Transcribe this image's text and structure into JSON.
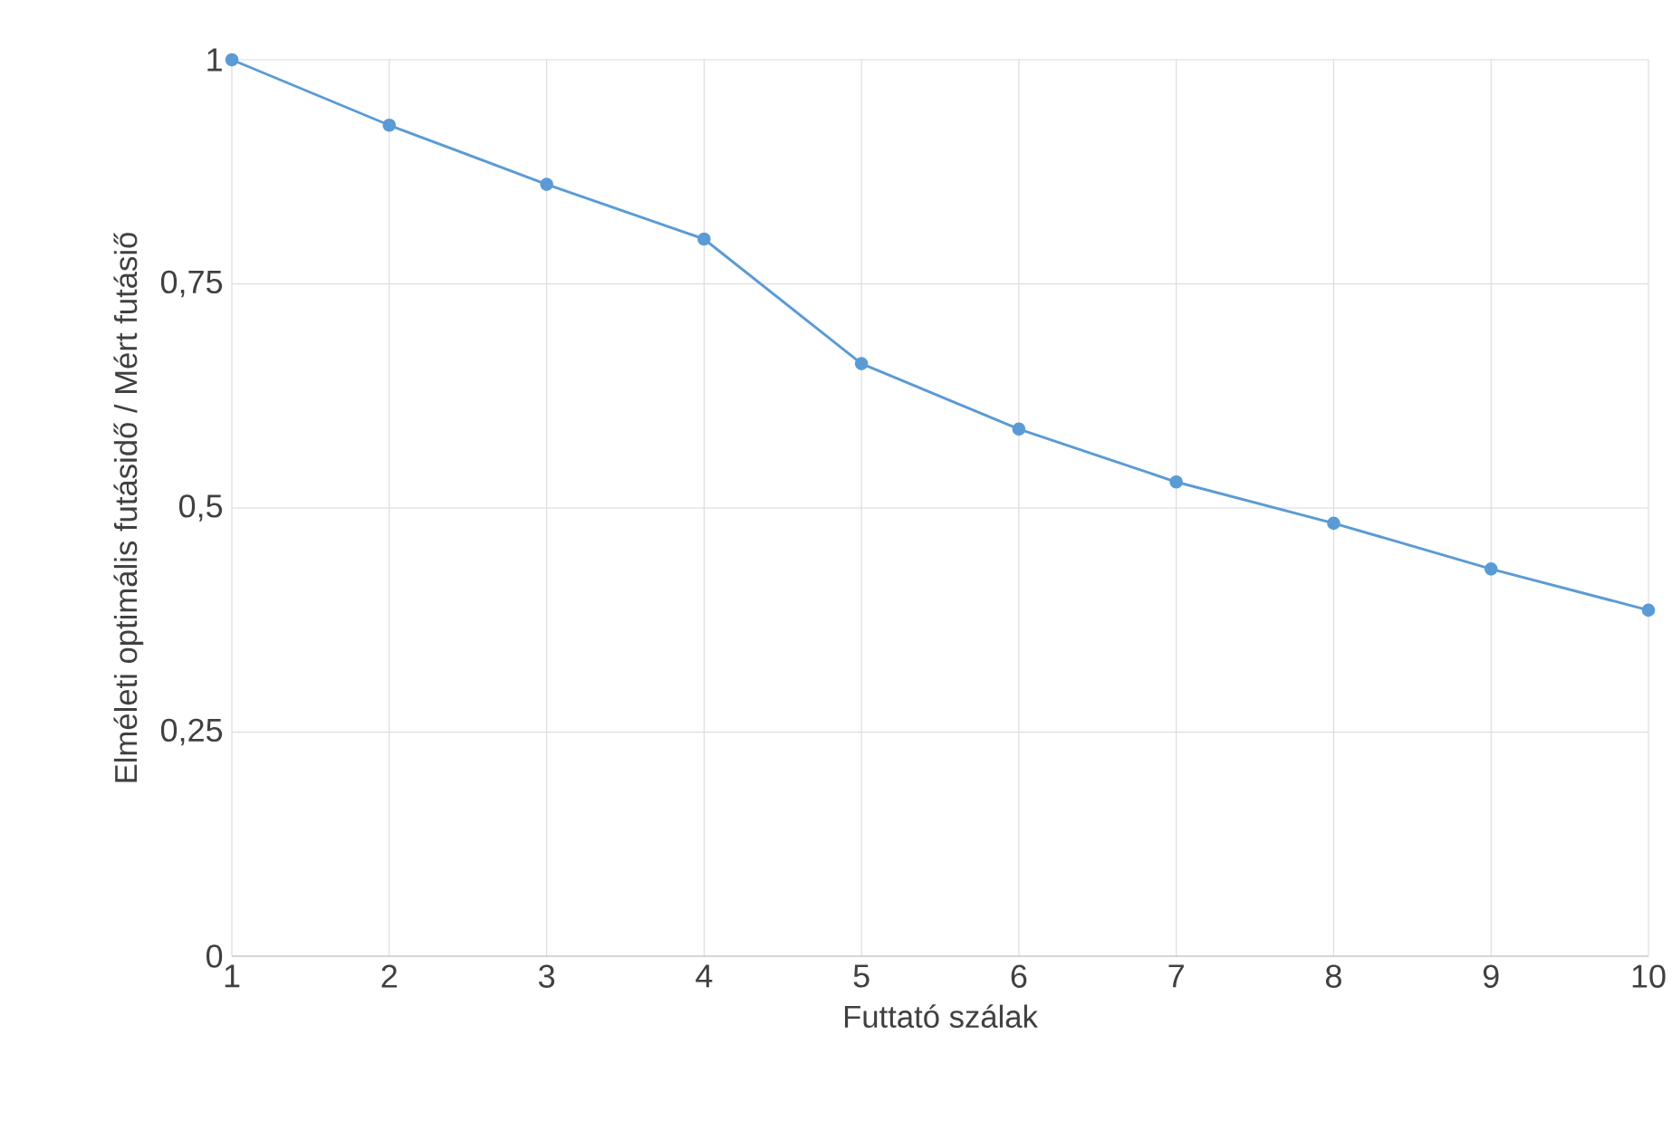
{
  "chart_data": {
    "type": "line",
    "xlabel": "Futtató szálak",
    "ylabel": "Elméleti optimális futásidő / Mért futásiő",
    "x": [
      1,
      2,
      3,
      4,
      5,
      6,
      7,
      8,
      9,
      10
    ],
    "series": [
      {
        "color": "#5b9bd5",
        "values": [
          1,
          0.927,
          0.861,
          0.8,
          0.661,
          0.588,
          0.529,
          0.483,
          0.432,
          0.386
        ]
      }
    ],
    "xlim": [
      1,
      10
    ],
    "xticks": [
      1,
      2,
      3,
      4,
      5,
      6,
      7,
      8,
      9,
      10
    ],
    "ylim": [
      0,
      1
    ],
    "yticks": [
      0,
      {
        "value": 0.25,
        "label": "0,25"
      },
      {
        "value": 0.5,
        "label": "0,5"
      },
      {
        "value": 0.75,
        "label": "0,75"
      },
      1
    ],
    "grid": true,
    "marker": "circle",
    "line_style": "solid"
  }
}
